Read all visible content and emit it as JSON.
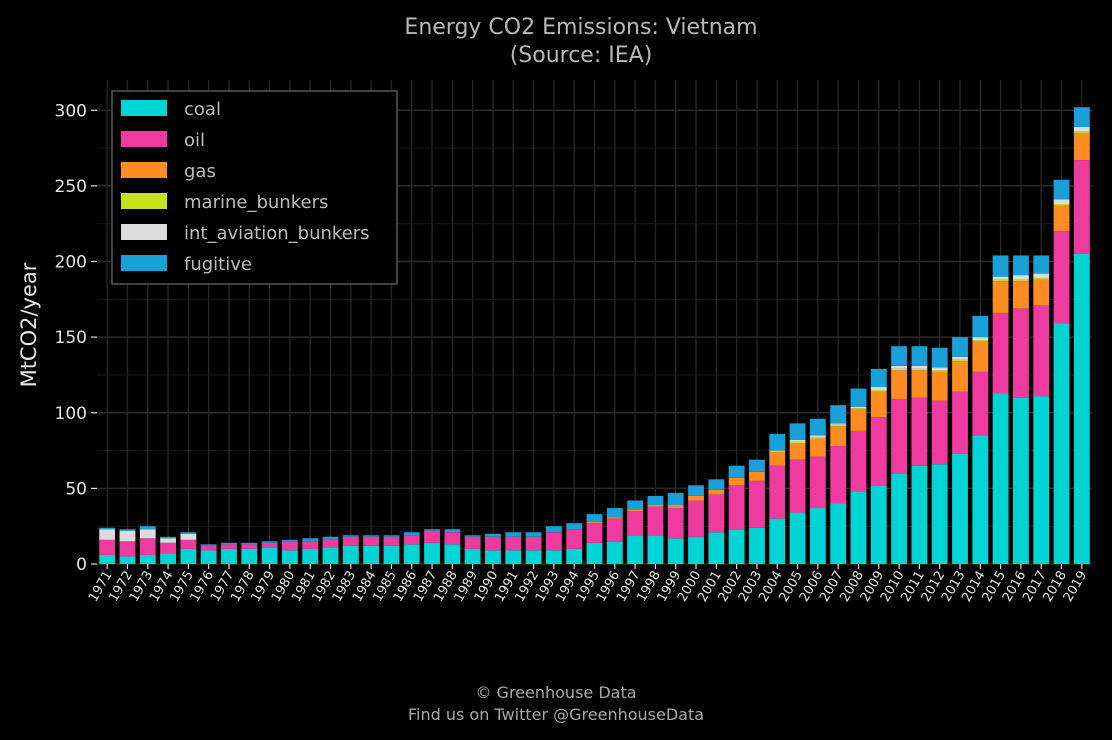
{
  "chart_data": {
    "type": "bar",
    "stacked": true,
    "title": "Energy CO2 Emissions: Vietnam",
    "subtitle": "(Source: IEA)",
    "xlabel": "",
    "ylabel": "MtCO2/year",
    "ylim": [
      0,
      320
    ],
    "yticks": [
      0,
      50,
      100,
      150,
      200,
      250,
      300
    ],
    "grid": true,
    "legend_position": "top-left",
    "categories": [
      "1971",
      "1972",
      "1973",
      "1974",
      "1975",
      "1976",
      "1977",
      "1978",
      "1979",
      "1980",
      "1981",
      "1982",
      "1983",
      "1984",
      "1985",
      "1986",
      "1987",
      "1988",
      "1989",
      "1990",
      "1991",
      "1992",
      "1993",
      "1994",
      "1995",
      "1996",
      "1997",
      "1998",
      "1999",
      "2000",
      "2001",
      "2002",
      "2003",
      "2004",
      "2005",
      "2006",
      "2007",
      "2008",
      "2009",
      "2010",
      "2011",
      "2012",
      "2013",
      "2014",
      "2015",
      "2016",
      "2017",
      "2018",
      "2019"
    ],
    "series": [
      {
        "name": "coal",
        "color": "#00d4d4",
        "values": [
          6,
          5,
          6,
          7,
          10,
          9,
          10,
          10,
          11,
          9,
          10,
          11,
          12,
          12,
          12,
          13,
          14,
          13,
          10,
          9,
          9,
          9,
          9,
          10,
          14,
          15,
          19,
          19,
          17,
          18,
          21,
          23,
          24,
          30,
          34,
          37,
          40,
          48,
          52,
          60,
          65,
          66,
          73,
          85,
          113,
          110,
          111,
          159,
          205
        ]
      },
      {
        "name": "oil",
        "color": "#ef3aa0",
        "values": [
          10,
          10,
          11,
          7,
          6,
          3,
          3,
          3,
          3,
          6,
          5,
          5,
          6,
          6,
          6,
          6,
          8,
          8,
          8,
          9,
          9,
          9,
          12,
          13,
          13,
          15,
          16,
          19,
          20,
          24,
          25,
          29,
          31,
          35,
          35,
          34,
          38,
          40,
          45,
          49,
          45,
          42,
          41,
          42,
          53,
          59,
          60,
          61,
          62
        ]
      },
      {
        "name": "gas",
        "color": "#ff8c21",
        "values": [
          0,
          0,
          0,
          0,
          0,
          0,
          0,
          0,
          0,
          0,
          0,
          0,
          0,
          0,
          0,
          0,
          0,
          0,
          0,
          0,
          0,
          0,
          0,
          0,
          1,
          1,
          1,
          1,
          2,
          3,
          3,
          5,
          6,
          9,
          11,
          12,
          13,
          14,
          17,
          19,
          18,
          19,
          20,
          20,
          21,
          18,
          17,
          17,
          18
        ]
      },
      {
        "name": "marine_bunkers",
        "color": "#c3e21c",
        "values": [
          0,
          0,
          0,
          0,
          0,
          0,
          0,
          0,
          0,
          0,
          0,
          0,
          0,
          0,
          0,
          0,
          0,
          0,
          0,
          0,
          0,
          0,
          0,
          0,
          0,
          0,
          0,
          0,
          0,
          0,
          0,
          0,
          0,
          1,
          1,
          1,
          1,
          1,
          1,
          1,
          1,
          1,
          1,
          1,
          1,
          1,
          1,
          1,
          1
        ]
      },
      {
        "name": "int_aviation_bunkers",
        "color": "#dcdcdc",
        "values": [
          7,
          7,
          6,
          3,
          4,
          0,
          0,
          0,
          0,
          0,
          0,
          0,
          0,
          0,
          0,
          0,
          0,
          0,
          0,
          0,
          0,
          0,
          0,
          0,
          0,
          0,
          0,
          0,
          0,
          0,
          0,
          0,
          0,
          0,
          1,
          1,
          1,
          1,
          2,
          2,
          2,
          2,
          2,
          2,
          2,
          3,
          3,
          3,
          3
        ]
      },
      {
        "name": "fugitive",
        "color": "#1aa0d8",
        "values": [
          1,
          1,
          2,
          1,
          1,
          1,
          1,
          1,
          1,
          1,
          2,
          2,
          1,
          1,
          1,
          2,
          1,
          2,
          1,
          2,
          3,
          3,
          4,
          4,
          5,
          6,
          6,
          6,
          8,
          7,
          7,
          8,
          8,
          11,
          11,
          11,
          12,
          12,
          12,
          13,
          13,
          13,
          13,
          14,
          14,
          13,
          12,
          13,
          13
        ]
      }
    ]
  },
  "credits": {
    "line1": "© Greenhouse Data",
    "line2": "Find us on Twitter @GreenhouseData"
  }
}
